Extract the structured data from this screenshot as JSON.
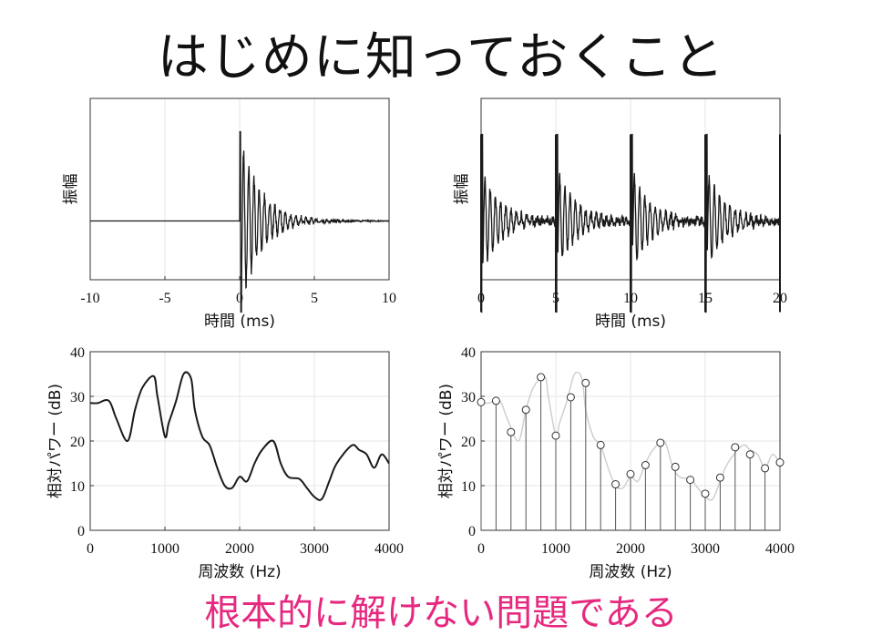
{
  "page": {
    "title": "はじめに知っておくこと",
    "footer": "根本的に解けない問題である"
  },
  "chart_data": [
    {
      "type": "line",
      "id": "impulse",
      "ylabel": "振幅",
      "xlabel": "時間 (ms)",
      "xlim": [
        -10,
        10
      ],
      "xticks": [
        -10,
        -5,
        0,
        5,
        10
      ],
      "grid": true,
      "color": "#1a1a1a"
    },
    {
      "type": "line",
      "id": "pulse_train",
      "ylabel": "振幅",
      "xlabel": "時間 (ms)",
      "xlim": [
        0,
        20
      ],
      "xticks": [
        0,
        5,
        10,
        15,
        20
      ],
      "pulse_times": [
        0,
        5,
        10,
        15,
        20
      ],
      "grid": true,
      "color": "#1a1a1a"
    },
    {
      "type": "line",
      "id": "spectrum",
      "ylabel": "相対パワー (dB)",
      "xlabel": "周波数 (Hz)",
      "xlim": [
        0,
        4000
      ],
      "ylim": [
        0,
        40
      ],
      "xticks": [
        0,
        1000,
        2000,
        3000,
        4000
      ],
      "yticks": [
        0,
        10,
        20,
        30,
        40
      ],
      "grid": true,
      "color": "#1a1a1a",
      "x": [
        0,
        100,
        250,
        350,
        500,
        600,
        700,
        850,
        900,
        1000,
        1050,
        1150,
        1250,
        1350,
        1400,
        1500,
        1600,
        1700,
        1800,
        1900,
        2000,
        2100,
        2200,
        2300,
        2450,
        2550,
        2650,
        2800,
        2900,
        3000,
        3100,
        3200,
        3300,
        3500,
        3600,
        3700,
        3800,
        3900,
        4000
      ],
      "y": [
        28.5,
        28.5,
        29,
        25,
        20,
        27,
        32,
        34.5,
        30,
        21,
        24,
        29,
        35,
        34,
        27,
        21,
        19,
        14,
        10,
        9.5,
        12,
        11,
        15,
        18,
        20,
        15,
        12,
        11.5,
        9.5,
        7.5,
        7,
        11,
        15,
        19,
        18,
        17,
        14,
        17,
        15
      ]
    },
    {
      "type": "stem",
      "id": "harmonics",
      "ylabel": "相対パワー (dB)",
      "xlabel": "周波数 (Hz)",
      "xlim": [
        0,
        4000
      ],
      "ylim": [
        0,
        40
      ],
      "xticks": [
        0,
        1000,
        2000,
        3000,
        4000
      ],
      "yticks": [
        0,
        10,
        20,
        30,
        40
      ],
      "grid": true,
      "color": "#555555",
      "envelope_color": "#cfcfcf",
      "x": [
        0,
        200,
        400,
        600,
        800,
        1000,
        1200,
        1400,
        1600,
        1800,
        2000,
        2200,
        2400,
        2600,
        2800,
        3000,
        3200,
        3400,
        3600,
        3800,
        4000
      ],
      "y": [
        28.7,
        29,
        22,
        27,
        34.3,
        21.2,
        29.8,
        33,
        19.1,
        10.3,
        12.6,
        14.6,
        19.6,
        14.2,
        11.3,
        8.2,
        11.8,
        18.6,
        17,
        13.9,
        15.2
      ]
    }
  ]
}
